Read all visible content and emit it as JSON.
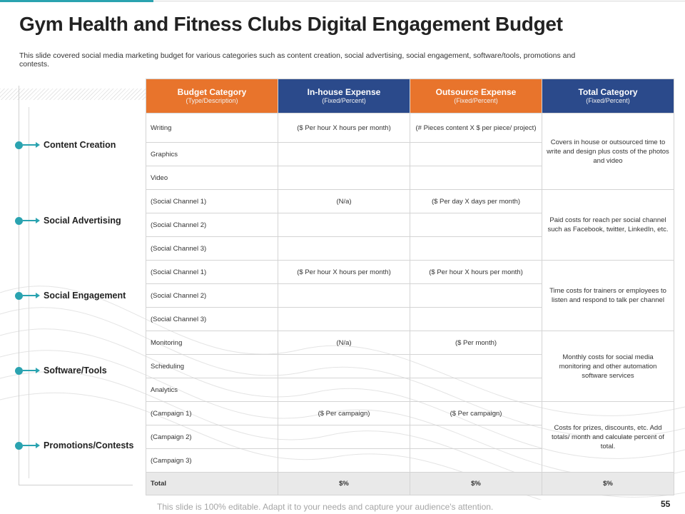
{
  "slide": {
    "title": "Gym Health and Fitness Clubs Digital Engagement Budget",
    "subtitle": "This slide covered social media marketing budget for various categories such as content creation, social advertising, social engagement, software/tools, promotions and contests.",
    "footer": "This slide is 100% editable. Adapt it to your needs and capture your audience's attention.",
    "page_number": "55"
  },
  "colors": {
    "accent": "#2aa3b0",
    "header_orange": "#e8742c",
    "header_navy": "#2b4a8b",
    "total_row": "#e9e9e9"
  },
  "categories": [
    {
      "label": "Content Creation"
    },
    {
      "label": "Social Advertising"
    },
    {
      "label": "Social Engagement"
    },
    {
      "label": "Software/Tools"
    },
    {
      "label": "Promotions/Contests"
    }
  ],
  "table": {
    "headers": [
      {
        "title": "Budget Category",
        "sub": "(Type/Description)"
      },
      {
        "title": "In-house Expense",
        "sub": "(Fixed/Percent)"
      },
      {
        "title": "Outsource Expense",
        "sub": "(Fixed/Percent)"
      },
      {
        "title": "Total Category",
        "sub": "(Fixed/Percent)"
      }
    ],
    "groups": [
      {
        "rows": [
          {
            "item": "Writing",
            "inhouse": "($ Per hour X hours per month)",
            "outsource": "(# Pieces content X $ per piece/ project)"
          },
          {
            "item": "Graphics",
            "inhouse": "",
            "outsource": ""
          },
          {
            "item": "Video",
            "inhouse": "",
            "outsource": ""
          }
        ],
        "note": "Covers in house or outsourced time to write and design plus costs of the photos and video"
      },
      {
        "rows": [
          {
            "item": "(Social Channel 1)",
            "inhouse": "(N/a)",
            "outsource": "($ Per day X days per month)"
          },
          {
            "item": "(Social Channel 2)",
            "inhouse": "",
            "outsource": ""
          },
          {
            "item": "(Social Channel 3)",
            "inhouse": "",
            "outsource": ""
          }
        ],
        "note": "Paid costs for reach per social channel such as Facebook, twitter, LinkedIn, etc."
      },
      {
        "rows": [
          {
            "item": "(Social Channel 1)",
            "inhouse": "($ Per hour X hours per month)",
            "outsource": "($ Per hour X hours per month)"
          },
          {
            "item": "(Social Channel 2)",
            "inhouse": "",
            "outsource": ""
          },
          {
            "item": "(Social Channel 3)",
            "inhouse": "",
            "outsource": ""
          }
        ],
        "note": "Time costs for trainers or employees to listen and respond to talk per channel"
      },
      {
        "rows": [
          {
            "item": "Monitoring",
            "inhouse": "(N/a)",
            "outsource": "($ Per month)"
          },
          {
            "item": "Scheduling",
            "inhouse": "",
            "outsource": ""
          },
          {
            "item": "Analytics",
            "inhouse": "",
            "outsource": ""
          }
        ],
        "note": "Monthly costs for social media monitoring and other automation software services"
      },
      {
        "rows": [
          {
            "item": "(Campaign 1)",
            "inhouse": "($ Per campaign)",
            "outsource": "($ Per campaign)"
          },
          {
            "item": "(Campaign 2)",
            "inhouse": "",
            "outsource": ""
          },
          {
            "item": "(Campaign 3)",
            "inhouse": "",
            "outsource": ""
          }
        ],
        "note": "Costs for prizes, discounts, etc. Add totals/ month and calculate percent of total."
      }
    ],
    "total": {
      "label": "Total",
      "inhouse": "$%",
      "outsource": "$%",
      "total": "$%"
    }
  }
}
